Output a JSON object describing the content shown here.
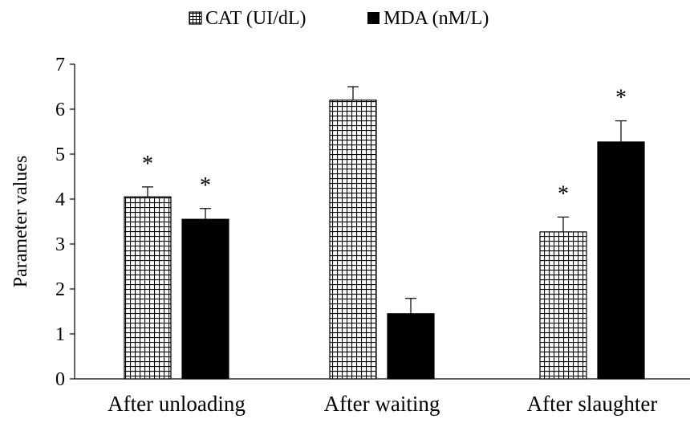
{
  "chart_data": {
    "type": "bar",
    "title": "",
    "xlabel": "",
    "ylabel": "Parameter values",
    "categories": [
      "After unloading",
      "After waiting",
      "After slaughter"
    ],
    "ylim": [
      0,
      7
    ],
    "yticks": [
      "0",
      "1",
      "2",
      "3",
      "4",
      "5",
      "6",
      "7"
    ],
    "grid": false,
    "legend_position": "top",
    "series": [
      {
        "name": "CAT (UI/dL)",
        "values": [
          4.05,
          6.2,
          3.27
        ],
        "error": [
          0.22,
          0.3,
          0.33
        ],
        "significant": [
          true,
          false,
          true
        ],
        "fill": "crosshatch",
        "color": "#000000"
      },
      {
        "name": "MDA (nM/L)",
        "values": [
          3.55,
          1.45,
          5.27
        ],
        "error": [
          0.24,
          0.34,
          0.47
        ],
        "significant": [
          true,
          false,
          true
        ],
        "fill": "solid",
        "color": "#000000"
      }
    ],
    "significance_marker": "*"
  }
}
